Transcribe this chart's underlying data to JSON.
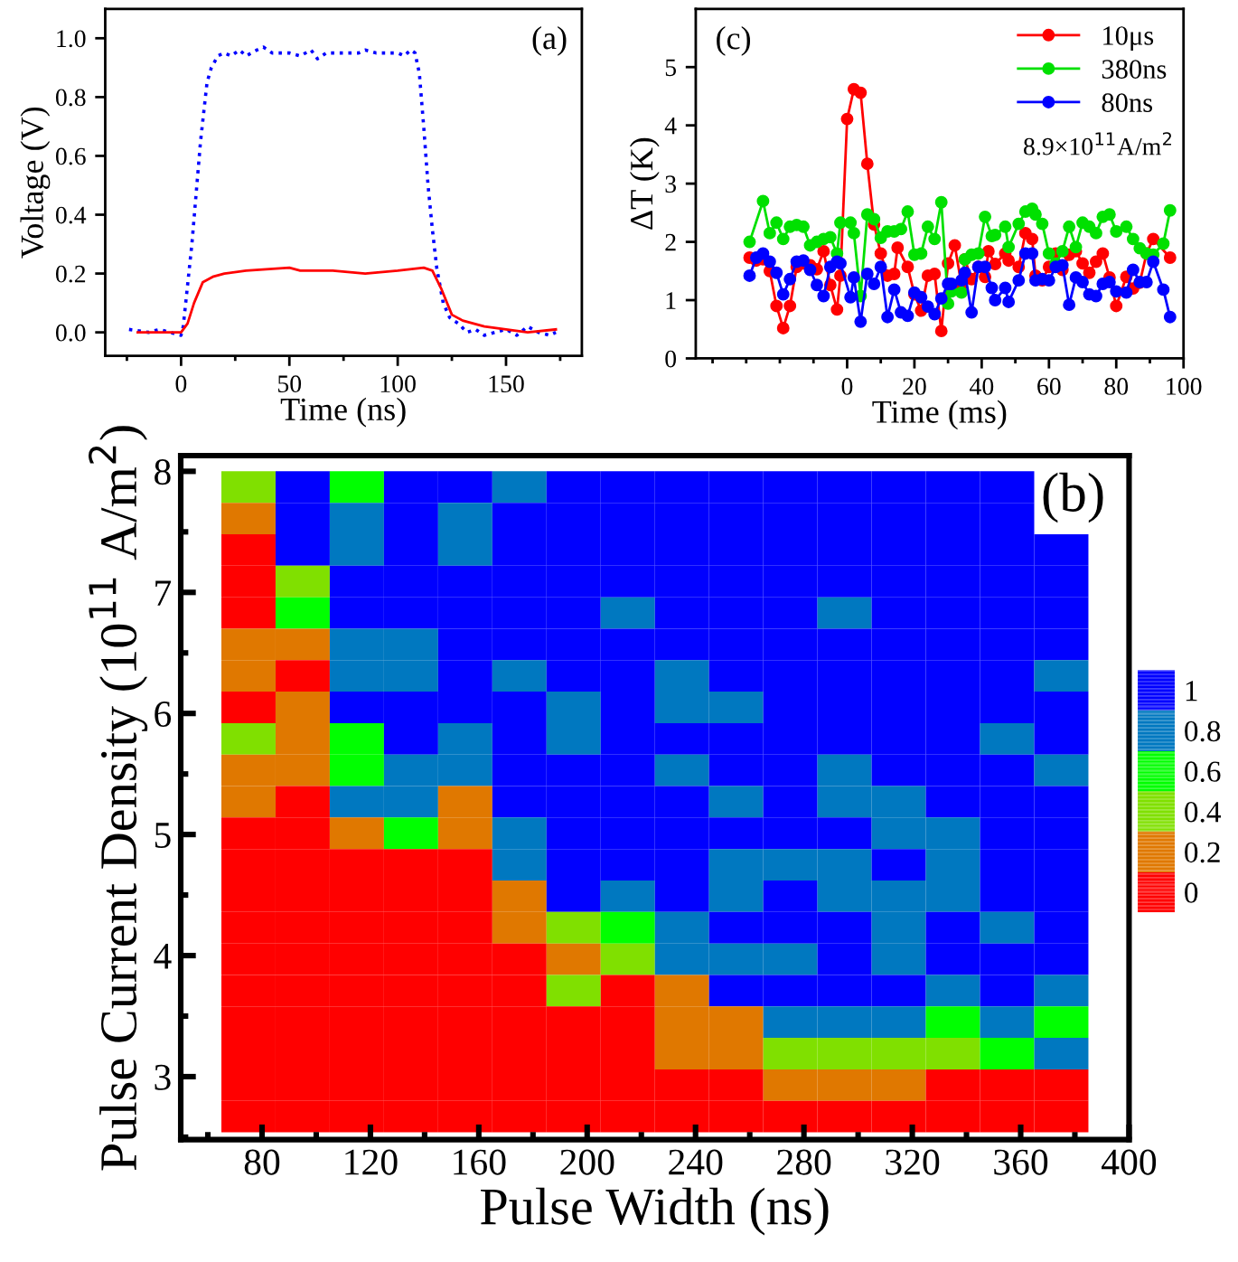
{
  "chart_data": [
    {
      "type": "line",
      "xlabel": "Time (ns)",
      "ylabel": "Voltage (V)",
      "annotations": [
        "(a)"
      ],
      "xlim": [
        -35,
        185
      ],
      "ylim": [
        -0.08,
        1.1
      ],
      "xticks": [
        {
          "value": -25,
          "label": null
        },
        0,
        {
          "value": 25,
          "label": null
        },
        50,
        {
          "value": 75,
          "label": null
        },
        100,
        {
          "value": 125,
          "label": null
        },
        150,
        {
          "value": 175,
          "label": null
        }
      ],
      "yticks": [
        {
          "value": 0,
          "label": "0.0"
        },
        {
          "value": 0.2,
          "label": "0.2"
        },
        {
          "value": 0.4,
          "label": "0.4"
        },
        {
          "value": 0.6,
          "label": "0.6"
        },
        {
          "value": 0.8,
          "label": "0.8"
        },
        {
          "value": 1,
          "label": "1.0"
        }
      ],
      "series": [
        {
          "color": "#0000ff",
          "line_style": "dotted",
          "x": [
            -24,
            -15,
            -10,
            -5,
            0,
            1,
            5,
            9,
            12,
            14,
            17,
            20,
            23,
            27,
            30,
            35,
            38,
            42,
            50,
            55,
            60,
            63,
            67,
            75,
            82,
            85,
            90,
            95,
            100,
            103,
            106,
            108,
            110,
            112,
            114,
            116,
            118,
            121,
            124,
            128,
            132,
            136,
            140,
            145,
            150,
            155,
            160,
            165,
            170,
            173
          ],
          "values": [
            0.01,
            0.0,
            0.01,
            0.0,
            -0.01,
            0.02,
            0.3,
            0.65,
            0.85,
            0.9,
            0.94,
            0.95,
            0.94,
            0.96,
            0.94,
            0.96,
            0.97,
            0.95,
            0.95,
            0.94,
            0.96,
            0.93,
            0.95,
            0.95,
            0.95,
            0.96,
            0.95,
            0.95,
            0.95,
            0.94,
            0.96,
            0.95,
            0.88,
            0.7,
            0.5,
            0.35,
            0.22,
            0.1,
            0.05,
            0.03,
            0.0,
            0.01,
            -0.01,
            0.0,
            0.01,
            -0.01,
            0.02,
            0.0,
            -0.01,
            0.0
          ]
        },
        {
          "color": "#ff0000",
          "line_style": "solid",
          "x": [
            -20,
            0,
            3,
            6,
            10,
            15,
            20,
            30,
            50,
            55,
            70,
            85,
            100,
            112,
            116,
            120,
            125,
            130,
            140,
            150,
            160,
            173
          ],
          "values": [
            0.0,
            0.0,
            0.03,
            0.1,
            0.17,
            0.19,
            0.2,
            0.21,
            0.22,
            0.21,
            0.21,
            0.2,
            0.21,
            0.22,
            0.21,
            0.15,
            0.06,
            0.04,
            0.02,
            0.01,
            0.0,
            0.01
          ]
        }
      ]
    },
    {
      "type": "line",
      "xlabel": "Time (ms)",
      "ylabel": "ΔT (K)",
      "annotations": [
        "(c)",
        "8.9×10$^{11}$A/m$^{2}$"
      ],
      "xlim": [
        -45,
        100
      ],
      "ylim": [
        0,
        6
      ],
      "marker": "circle",
      "line_style": "solid",
      "legend": "top right",
      "xticks": [
        {
          "value": -40,
          "label": null
        },
        {
          "value": -30,
          "label": null
        },
        {
          "value": -20,
          "label": null
        },
        {
          "value": -10,
          "label": null
        },
        0,
        {
          "value": 10,
          "label": null
        },
        20,
        {
          "value": 30,
          "label": null
        },
        40,
        {
          "value": 50,
          "label": null
        },
        60,
        {
          "value": 70,
          "label": null
        },
        80,
        {
          "value": 90,
          "label": null
        },
        100
      ],
      "yticks": [
        0,
        1,
        2,
        3,
        4,
        5
      ],
      "series": [
        {
          "name": "10μs",
          "color": "#ff0000",
          "x": [
            -29,
            -27,
            -25,
            -23,
            -21,
            -19,
            -17,
            -15,
            -13,
            -11,
            -9,
            -7,
            -5,
            -3,
            -2,
            0,
            2,
            4,
            6,
            8,
            10,
            12,
            14,
            15,
            18,
            20,
            22,
            24,
            26,
            28,
            30,
            32,
            34,
            35,
            37,
            39,
            41,
            42,
            44,
            47,
            48,
            51,
            53,
            55,
            56,
            58,
            60,
            62,
            64,
            66,
            68,
            70,
            72,
            74,
            76,
            78,
            80,
            83,
            85,
            87,
            89,
            91,
            96
          ],
          "values": [
            1.73,
            1.68,
            1.7,
            1.5,
            0.9,
            0.52,
            0.9,
            1.57,
            1.63,
            1.6,
            1.53,
            1.84,
            1.26,
            0.84,
            1.42,
            4.11,
            4.62,
            4.56,
            3.34,
            2.3,
            1.8,
            1.42,
            1.45,
            1.9,
            1.57,
            1.1,
            0.82,
            1.42,
            1.45,
            0.47,
            1.63,
            1.94,
            1.26,
            1.7,
            1.36,
            1.57,
            1.4,
            1.84,
            1.62,
            1.8,
            1.68,
            1.57,
            2.15,
            2.05,
            1.42,
            1.34,
            1.57,
            1.8,
            1.52,
            1.78,
            1.84,
            1.63,
            1.47,
            1.66,
            1.8,
            1.39,
            0.9,
            1.4,
            1.2,
            1.3,
            1.8,
            2.05,
            1.73
          ]
        },
        {
          "name": "380ns",
          "color": "#00e000",
          "x": [
            -29,
            -25,
            -23,
            -21,
            -19,
            -17,
            -15,
            -13,
            -11,
            -9,
            -7,
            -5,
            -3,
            -2,
            1,
            2,
            4,
            6,
            8,
            10,
            12,
            14,
            16,
            18,
            20,
            22,
            24,
            26,
            28,
            30,
            31,
            34,
            35,
            37,
            39,
            41,
            43,
            44,
            47,
            48,
            51,
            53,
            55,
            56,
            58,
            60,
            62,
            64,
            66,
            68,
            70,
            72,
            74,
            76,
            78,
            80,
            83,
            85,
            87,
            89,
            91,
            94,
            96
          ],
          "values": [
            2.0,
            2.7,
            2.15,
            2.33,
            2.05,
            2.26,
            2.29,
            2.26,
            1.94,
            2.0,
            2.05,
            2.08,
            1.8,
            2.33,
            2.33,
            2.15,
            1.07,
            2.47,
            2.39,
            2.07,
            2.18,
            2.18,
            2.22,
            2.52,
            1.78,
            1.8,
            2.26,
            2.05,
            2.68,
            0.94,
            1.15,
            1.13,
            1.7,
            1.78,
            1.8,
            2.43,
            2.1,
            2.12,
            2.26,
            1.91,
            2.31,
            2.52,
            2.57,
            2.47,
            2.31,
            1.8,
            1.63,
            1.84,
            2.26,
            1.91,
            2.33,
            2.26,
            2.15,
            2.43,
            2.47,
            2.18,
            2.26,
            2.05,
            1.89,
            1.8,
            1.78,
            1.97,
            2.54
          ]
        },
        {
          "name": "80ns",
          "color": "#0000ff",
          "x": [
            -29,
            -27,
            -25,
            -23,
            -21,
            -19,
            -17,
            -15,
            -13,
            -11,
            -9,
            -7,
            -5,
            -3,
            -2,
            1,
            2,
            4,
            6,
            8,
            10,
            12,
            14,
            16,
            18,
            20,
            22,
            24,
            26,
            28,
            30,
            31,
            34,
            35,
            37,
            39,
            41,
            43,
            44,
            47,
            48,
            51,
            53,
            55,
            56,
            58,
            60,
            62,
            64,
            66,
            68,
            70,
            72,
            74,
            76,
            78,
            80,
            83,
            85,
            87,
            89,
            91,
            94,
            96
          ],
          "values": [
            1.42,
            1.73,
            1.8,
            1.66,
            1.47,
            1.1,
            1.36,
            1.66,
            1.68,
            1.52,
            1.26,
            1.07,
            1.57,
            1.66,
            1.63,
            1.05,
            1.39,
            0.63,
            1.45,
            1.28,
            1.57,
            0.71,
            1.18,
            0.79,
            0.73,
            1.13,
            1.05,
            0.89,
            0.76,
            1.03,
            1.28,
            1.28,
            1.34,
            1.47,
            0.79,
            1.57,
            1.57,
            1.21,
            1.0,
            1.21,
            0.97,
            1.34,
            1.8,
            1.8,
            1.34,
            1.36,
            1.34,
            1.57,
            1.6,
            0.92,
            1.39,
            1.31,
            1.1,
            1.07,
            1.28,
            1.31,
            1.15,
            1.13,
            1.52,
            1.31,
            1.31,
            1.66,
            1.18,
            0.71
          ]
        }
      ]
    },
    {
      "type": "heatmap",
      "xlabel": "Pulse Width (ns)",
      "ylabel": "Pulse Current Density (10$^{11}$ A/m$^{2}$)",
      "annotations": [
        "(b)"
      ],
      "x": [
        75,
        95,
        115,
        135,
        155,
        175,
        195,
        215,
        235,
        255,
        275,
        295,
        315,
        335,
        355,
        375
      ],
      "y": [
        7.87,
        7.61,
        7.35,
        7.09,
        6.83,
        6.57,
        6.31,
        6.05,
        5.79,
        5.53,
        5.27,
        5.01,
        4.75,
        4.49,
        4.23,
        3.97,
        3.71,
        3.45,
        3.19,
        2.93,
        2.67
      ],
      "xlim": [
        50,
        400
      ],
      "ylim": [
        2.48,
        8.13
      ],
      "xticks": [
        {
          "value": 60,
          "label": null
        },
        80,
        {
          "value": 100,
          "label": null
        },
        120,
        {
          "value": 140,
          "label": null
        },
        160,
        {
          "value": 180,
          "label": null
        },
        200,
        {
          "value": 220,
          "label": null
        },
        240,
        {
          "value": 260,
          "label": null
        },
        280,
        {
          "value": 300,
          "label": null
        },
        320,
        {
          "value": 340,
          "label": null
        },
        360,
        {
          "value": 380,
          "label": null
        },
        400
      ],
      "yticks": [
        {
          "value": 2.5,
          "label": null
        },
        3,
        {
          "value": 3.5,
          "label": null
        },
        4,
        {
          "value": 4.5,
          "label": null
        },
        5,
        {
          "value": 5.5,
          "label": null
        },
        6,
        {
          "value": 6.5,
          "label": null
        },
        7,
        {
          "value": 7.5,
          "label": null
        },
        8
      ],
      "clim": [
        -0.1,
        1.1
      ],
      "cticks": [
        0,
        0.2,
        0.4,
        0.6,
        0.8,
        1
      ],
      "colors": [
        "#ff0000",
        "#e07800",
        "#80e000",
        "#00ff00",
        "#0078c0",
        "#0000ff"
      ],
      "cells": [
        [
          0.4,
          1,
          0.6,
          1,
          1,
          0.8,
          1,
          1,
          1,
          1,
          1,
          1,
          1,
          1,
          1,
          null
        ],
        [
          0.2,
          1,
          0.8,
          1,
          0.8,
          1,
          1,
          1,
          1,
          1,
          1,
          1,
          1,
          1,
          1,
          null
        ],
        [
          0,
          1,
          0.8,
          1,
          0.8,
          1,
          1,
          1,
          1,
          1,
          1,
          1,
          1,
          1,
          1,
          1
        ],
        [
          0,
          0.4,
          1,
          1,
          1,
          1,
          1,
          1,
          1,
          1,
          1,
          1,
          1,
          1,
          1,
          1
        ],
        [
          0,
          0.6,
          1,
          1,
          1,
          1,
          1,
          0.8,
          1,
          1,
          1,
          0.8,
          1,
          1,
          1,
          1
        ],
        [
          0.2,
          0.2,
          0.8,
          0.8,
          1,
          1,
          1,
          1,
          1,
          1,
          1,
          1,
          1,
          1,
          1,
          1
        ],
        [
          0.2,
          0,
          0.8,
          0.8,
          1,
          0.8,
          1,
          1,
          0.8,
          1,
          1,
          1,
          1,
          1,
          1,
          0.8
        ],
        [
          0,
          0.2,
          1,
          1,
          1,
          1,
          0.8,
          1,
          0.8,
          0.8,
          1,
          1,
          1,
          1,
          1,
          1
        ],
        [
          0.4,
          0.2,
          0.6,
          1,
          0.8,
          1,
          0.8,
          1,
          1,
          1,
          1,
          1,
          1,
          1,
          0.8,
          1
        ],
        [
          0.2,
          0.2,
          0.6,
          0.8,
          0.8,
          1,
          1,
          1,
          0.8,
          1,
          1,
          0.8,
          1,
          1,
          1,
          0.8
        ],
        [
          0.2,
          0,
          0.8,
          0.8,
          0.2,
          1,
          1,
          1,
          1,
          0.8,
          1,
          0.8,
          0.8,
          1,
          1,
          1
        ],
        [
          0,
          0,
          0.2,
          0.6,
          0.2,
          0.8,
          1,
          1,
          1,
          1,
          1,
          1,
          0.8,
          0.8,
          1,
          1
        ],
        [
          0,
          0,
          0,
          0,
          0,
          0.8,
          1,
          1,
          1,
          0.8,
          0.8,
          0.8,
          1,
          0.8,
          1,
          1
        ],
        [
          0,
          0,
          0,
          0,
          0,
          0.2,
          1,
          0.8,
          1,
          0.8,
          1,
          0.8,
          0.8,
          0.8,
          1,
          1
        ],
        [
          0,
          0,
          0,
          0,
          0,
          0.2,
          0.4,
          0.6,
          0.8,
          1,
          1,
          1,
          0.8,
          1,
          0.8,
          1
        ],
        [
          0,
          0,
          0,
          0,
          0,
          0,
          0.2,
          0.4,
          0.8,
          0.8,
          0.8,
          1,
          0.8,
          1,
          1,
          1
        ],
        [
          0,
          0,
          0,
          0,
          0,
          0,
          0.4,
          0,
          0.2,
          1,
          1,
          1,
          1,
          0.8,
          1,
          0.8
        ],
        [
          0,
          0,
          0,
          0,
          0,
          0,
          0,
          0,
          0.2,
          0.2,
          0.8,
          0.8,
          0.8,
          0.6,
          0.8,
          0.6
        ],
        [
          0,
          0,
          0,
          0,
          0,
          0,
          0,
          0,
          0.2,
          0.2,
          0.4,
          0.4,
          0.4,
          0.4,
          0.6,
          0.8
        ],
        [
          0,
          0,
          0,
          0,
          0,
          0,
          0,
          0,
          0,
          0,
          0.2,
          0.2,
          0.2,
          0,
          0,
          0
        ],
        [
          0,
          0,
          0,
          0,
          0,
          0,
          0,
          0,
          0,
          0,
          0,
          0,
          0,
          0,
          0,
          0
        ]
      ]
    }
  ]
}
